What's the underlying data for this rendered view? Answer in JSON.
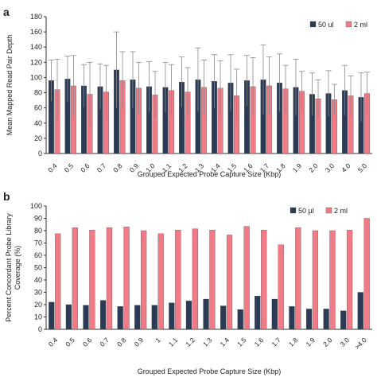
{
  "colors": {
    "series_a": "#2b3a55",
    "series_b": "#f07a86",
    "axis": "#333333",
    "error": "#8a8a8a"
  },
  "chart_data": [
    {
      "panel": "a",
      "type": "bar",
      "error_bars": true,
      "ylabel": "Mean Mapped Read Pair Depth",
      "xlabel": "Grouped Expected Probe Capture Size (Kbp)",
      "ylim": [
        0,
        180
      ],
      "yticks": [
        0,
        20,
        40,
        60,
        80,
        100,
        120,
        140,
        160,
        180
      ],
      "legend_position": "top-right",
      "categories": [
        "0.4",
        "0.5",
        "0.6",
        "0.7",
        "0.8",
        "0.9",
        "1.0",
        "1.1",
        "1.2",
        "1.3",
        "1.4",
        "1.5",
        "1.6",
        "1.7",
        "1.8",
        "1.9",
        "2.0",
        "3.0",
        "4.0",
        "5.0"
      ],
      "series": [
        {
          "name": "50 ul",
          "color": "#2b3a55",
          "values": [
            96,
            98,
            89,
            88,
            110,
            97,
            88,
            87,
            94,
            97,
            95,
            93,
            96,
            97,
            93,
            87,
            78,
            79,
            83,
            74
          ],
          "err": [
            27,
            30,
            28,
            30,
            50,
            37,
            33,
            33,
            33,
            42,
            35,
            37,
            33,
            46,
            38,
            37,
            28,
            30,
            33,
            32
          ]
        },
        {
          "name": "2 ml",
          "color": "#f07a86",
          "values": [
            84,
            89,
            78,
            81,
            96,
            86,
            77,
            83,
            81,
            87,
            86,
            76,
            88,
            89,
            85,
            82,
            72,
            71,
            76,
            79
          ],
          "err": [
            40,
            40,
            42,
            35,
            38,
            34,
            31,
            34,
            32,
            36,
            36,
            35,
            38,
            38,
            31,
            26,
            25,
            20,
            26,
            28
          ]
        }
      ]
    },
    {
      "panel": "b",
      "type": "bar",
      "ylabel": "Percent Concordant Probe Library Coverage (%)",
      "xlabel": "Grouped Expected Probe Capture Size (Kbp)",
      "ylim": [
        0,
        100
      ],
      "yticks": [
        0,
        10,
        20,
        30,
        40,
        50,
        60,
        70,
        80,
        90,
        100
      ],
      "legend_position": "top-right",
      "categories": [
        "0.4",
        "0.5",
        "0.6",
        "0.7",
        "0.8",
        "0.9",
        "1",
        "1.1",
        "1.2",
        "1.3",
        "1.4",
        "1.5",
        "1.6",
        "1.7",
        "1.8",
        "1.9",
        "2.0",
        "3.0",
        ">4.0"
      ],
      "series": [
        {
          "name": "50 µl",
          "color": "#2b3a55",
          "values": [
            22,
            20,
            19.5,
            23.5,
            18.5,
            19.5,
            19.5,
            21.5,
            23,
            24.5,
            19,
            16,
            27,
            24.5,
            18.5,
            16.5,
            16.5,
            15,
            30
          ]
        },
        {
          "name": "2 ml",
          "color": "#f07a86",
          "values": [
            77.5,
            82.5,
            80.5,
            82.5,
            83,
            80,
            77.5,
            80.5,
            81.5,
            80.5,
            76.5,
            83.5,
            80.5,
            68.5,
            82.5,
            80,
            80,
            80.5,
            90
          ]
        }
      ]
    }
  ]
}
